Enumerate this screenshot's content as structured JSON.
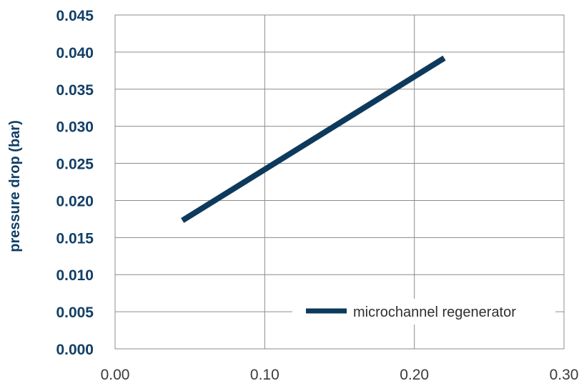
{
  "chart_data": {
    "type": "line",
    "title": "",
    "xlabel": "",
    "ylabel": "pressure drop (bar)",
    "xlim": [
      0.0,
      0.3
    ],
    "ylim": [
      0.0,
      0.045
    ],
    "x_ticks": [
      "0.00",
      "0.10",
      "0.20",
      "0.30"
    ],
    "y_ticks": [
      "0.000",
      "0.005",
      "0.010",
      "0.015",
      "0.020",
      "0.025",
      "0.030",
      "0.035",
      "0.040",
      "0.045"
    ],
    "grid": true,
    "legend_position": "bottom-right",
    "series": [
      {
        "name": "microchannel regenerator",
        "color": "#0d3a5c",
        "x": [
          0.045,
          0.22
        ],
        "y": [
          0.0173,
          0.0392
        ]
      }
    ]
  }
}
